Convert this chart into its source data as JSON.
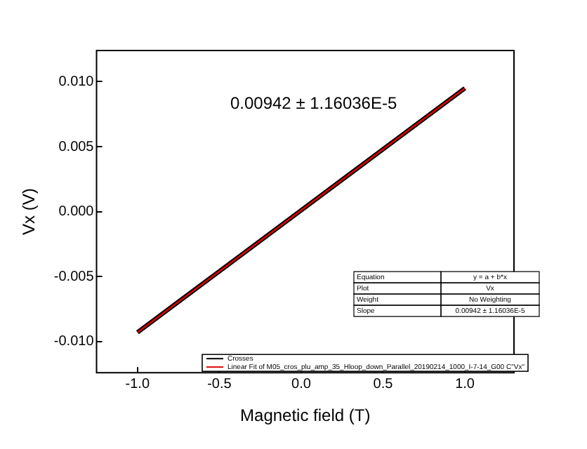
{
  "chart_data": {
    "type": "line",
    "xlabel": "Magnetic field (T)",
    "ylabel": "Vx (V)",
    "x": [
      -1,
      -0.5,
      0,
      0.5,
      1
    ],
    "series": [
      {
        "name": "Crosses",
        "color": "#000000",
        "values": [
          -0.0093,
          -0.0046,
          0.0001,
          0.0048,
          0.0095
        ]
      },
      {
        "name": "Linear Fit of M05_cros_plu_amp_35_Hloop_down_Parallel_20190214_1000_I-7-14_G00 C\"Vx\"",
        "color": "#e00000",
        "values": [
          -0.0093,
          -0.0046,
          0.0001,
          0.0048,
          0.0095
        ]
      }
    ],
    "xlim": [
      -1.25,
      1.3
    ],
    "xticks": [
      {
        "value": -1,
        "label": "-1.0"
      },
      -0.5,
      {
        "value": 0,
        "label": "0.0"
      },
      0.5,
      {
        "value": 1,
        "label": "1.0"
      }
    ],
    "ylim": [
      -0.0124,
      0.0124
    ],
    "yticks": [
      {
        "value": -0.01,
        "label": "-0.010"
      },
      -0.005,
      {
        "value": 0,
        "label": "0.000"
      },
      0.005,
      {
        "value": 0.01,
        "label": "0.010"
      }
    ],
    "grid": false,
    "legend": "bottom right",
    "marker": "none",
    "line_style": "solid",
    "annotations": [
      "0.00942 ± 1.16036E-5",
      "Equation",
      "y = a + b*x",
      "Plot",
      "Vx",
      "Weight",
      "No Weighting",
      "Slope",
      "0.00942 ± 1.16036E-5"
    ]
  }
}
